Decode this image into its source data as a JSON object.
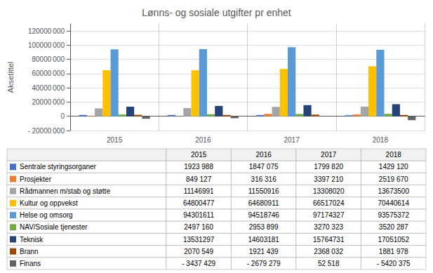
{
  "chart_data": {
    "type": "bar",
    "title": "Lønns- og sosiale utgifter pr enhet",
    "ylabel": "Aksetittel",
    "categories": [
      "2015",
      "2016",
      "2017",
      "2018"
    ],
    "series": [
      {
        "name": "Sentrale styringsorganer",
        "color": "#4472C4",
        "values": [
          1923988,
          1847075,
          1799820,
          1429120
        ],
        "value_labels": [
          "1923 988",
          "1847 075",
          "1799 820",
          "1429 120"
        ]
      },
      {
        "name": "Prosjekter",
        "color": "#ED7D31",
        "values": [
          849127,
          316316,
          3397210,
          2519670
        ],
        "value_labels": [
          "849 127",
          "316 316",
          "3397 210",
          "2519 670"
        ]
      },
      {
        "name": "Rådmannen m/stab og støtte",
        "color": "#A5A5A5",
        "values": [
          11146991,
          11550916,
          13308020,
          13673500
        ],
        "value_labels": [
          "11146991",
          "11550916",
          "13308020",
          "13673500"
        ]
      },
      {
        "name": "Kultur og oppvekst",
        "color": "#FFC000",
        "values": [
          64800477,
          64680911,
          66517024,
          70440614
        ],
        "value_labels": [
          "64800477",
          "64680911",
          "66517024",
          "70440614"
        ]
      },
      {
        "name": "Helse og omsorg",
        "color": "#5B9BD5",
        "values": [
          94301611,
          94518746,
          97174327,
          93575372
        ],
        "value_labels": [
          "94301611",
          "94518746",
          "97174327",
          "93575372"
        ]
      },
      {
        "name": "NAV/Sosiale tjenester",
        "color": "#70AD47",
        "values": [
          2497160,
          2953899,
          3270323,
          3520287
        ],
        "value_labels": [
          "2497 160",
          "2953 899",
          "3270 323",
          "3520 287"
        ]
      },
      {
        "name": "Teknisk",
        "color": "#264478",
        "values": [
          13531297,
          14603181,
          15764731,
          17051052
        ],
        "value_labels": [
          "13531297",
          "14603181",
          "15764731",
          "17051052"
        ]
      },
      {
        "name": "Brann",
        "color": "#9E480E",
        "values": [
          2070549,
          1921439,
          2368032,
          1881978
        ],
        "value_labels": [
          "2070 549",
          "1921 439",
          "2368 032",
          "1881 978"
        ]
      },
      {
        "name": "Finans",
        "color": "#636363",
        "values": [
          -3437429,
          -2679279,
          52518,
          -5420375
        ],
        "value_labels": [
          "- 3437 429",
          "- 2679 279",
          "52 518",
          "- 5420 375"
        ]
      }
    ],
    "ylim": [
      -20000000,
      130000000
    ],
    "yticks": [
      {
        "value": -20000000,
        "label": "- 20000 000"
      },
      0,
      {
        "value": 20000000,
        "label": "20000 000"
      },
      {
        "value": 40000000,
        "label": "40000 000"
      },
      {
        "value": 60000000,
        "label": "60000 000"
      },
      {
        "value": 80000000,
        "label": "80000 000"
      },
      {
        "value": 100000000,
        "label": "100000 000"
      },
      {
        "value": 120000000,
        "label": "120000 000"
      }
    ],
    "grid": true
  }
}
